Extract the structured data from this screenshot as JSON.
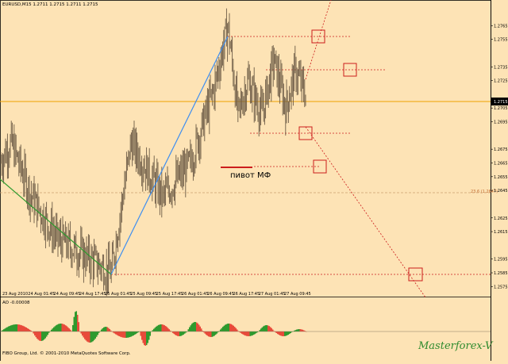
{
  "window": {
    "symbol_header": "EURUSD,M15  1.2711 1.2715 1.2711 1.2715",
    "ao_header": "AO -0.00008",
    "copyright": "FIBO Group, Ltd. © 2001-2010 MetaQuotes Software Corp.",
    "watermark": "Masterforex-V",
    "pivot_label": "пивот МФ",
    "fib_label": "23.6 (1.2647)",
    "current_price": "1.2715"
  },
  "colors": {
    "background": "#fde3b5",
    "candles": "#6b5a45",
    "current_price_line": "#f0a000",
    "uptrend_line": "#3e8ef0",
    "downtrend_line": "#2e9a2e",
    "levels": "#cc1c1c",
    "ao_up": "#2e9a2e",
    "ao_down": "#e84a3a",
    "watermark": "#2e8b2e"
  },
  "chart_data": [
    {
      "type": "candlestick",
      "symbol": "EURUSD",
      "timeframe": "M15",
      "ylim": [
        1.257,
        1.2775
      ],
      "y_ticks": [
        "1.2765",
        "1.2755",
        "1.2735",
        "1.2725",
        "1.2705",
        "1.2695",
        "1.2675",
        "1.2665",
        "1.2655",
        "1.2645",
        "1.2625",
        "1.2615",
        "1.2595",
        "1.2585",
        "1.2575"
      ],
      "x_ticks": [
        "23 Aug 2010",
        "24 Aug 01:45",
        "24 Aug 09:45",
        "24 Aug 17:45",
        "25 Aug 01:45",
        "25 Aug 09:45",
        "25 Aug 17:45",
        "26 Aug 01:45",
        "26 Aug 09:45",
        "26 Aug 17:45",
        "27 Aug 01:45",
        "27 Aug 09:45"
      ],
      "last_price": 1.2715,
      "pivot_high": 1.2765,
      "swing_low": 1.2585,
      "fib_level": {
        "label": "23.6 (1.2647)",
        "value": 1.2647
      },
      "projection_levels": [
        1.2765,
        1.2738,
        1.2689,
        1.2663,
        1.2586
      ]
    },
    {
      "type": "bar",
      "name": "AO",
      "last_value": -8e-05
    }
  ]
}
